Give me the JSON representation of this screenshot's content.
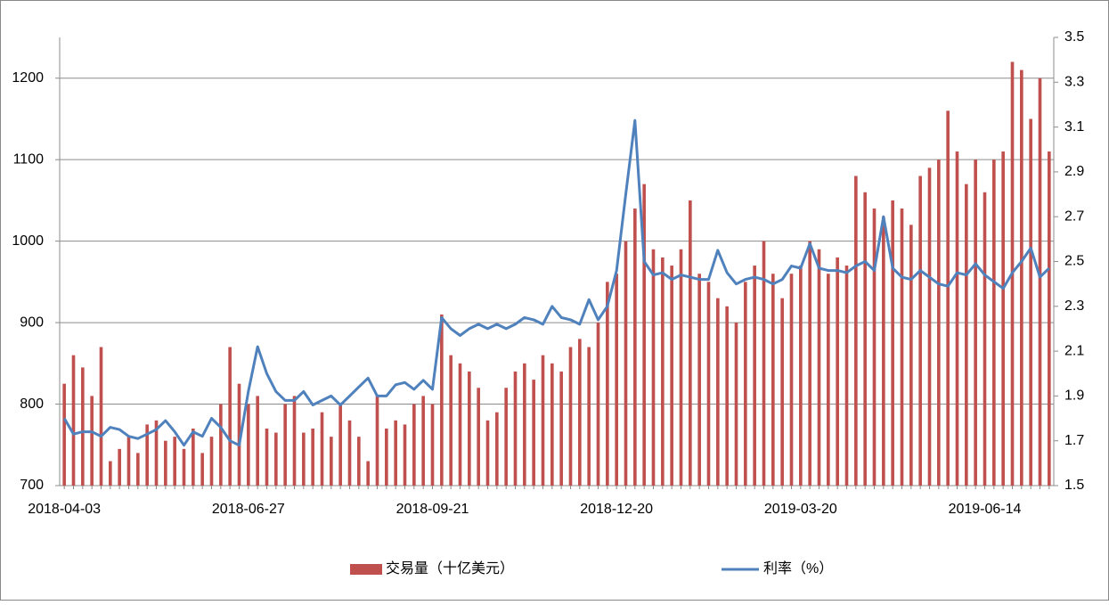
{
  "chart_data": {
    "type": "combo",
    "categories": [
      "2018-04-03",
      null,
      null,
      null,
      null,
      null,
      null,
      null,
      null,
      null,
      null,
      null,
      null,
      null,
      null,
      null,
      null,
      null,
      null,
      null,
      "2018-06-27",
      null,
      null,
      null,
      null,
      null,
      null,
      null,
      null,
      null,
      null,
      null,
      null,
      null,
      null,
      null,
      null,
      null,
      null,
      null,
      "2018-09-21",
      null,
      null,
      null,
      null,
      null,
      null,
      null,
      null,
      null,
      null,
      null,
      null,
      null,
      null,
      null,
      null,
      null,
      null,
      null,
      "2018-12-20",
      null,
      null,
      null,
      null,
      null,
      null,
      null,
      null,
      null,
      null,
      null,
      null,
      null,
      null,
      null,
      null,
      null,
      null,
      null,
      "2019-03-20",
      null,
      null,
      null,
      null,
      null,
      null,
      null,
      null,
      null,
      null,
      null,
      null,
      null,
      null,
      null,
      null,
      null,
      null,
      null,
      "2019-06-14",
      null,
      null,
      null,
      null,
      null,
      null,
      null
    ],
    "series": [
      {
        "name": "交易量（十亿美元）",
        "type": "bar",
        "color": "#c0504d",
        "values": [
          825,
          860,
          845,
          810,
          870,
          730,
          745,
          760,
          740,
          775,
          780,
          755,
          760,
          745,
          770,
          740,
          760,
          800,
          870,
          825,
          800,
          810,
          770,
          765,
          800,
          810,
          765,
          770,
          790,
          760,
          800,
          780,
          760,
          730,
          810,
          770,
          780,
          775,
          800,
          810,
          800,
          910,
          860,
          850,
          840,
          820,
          780,
          790,
          820,
          840,
          850,
          830,
          860,
          850,
          840,
          870,
          880,
          870,
          900,
          950,
          960,
          1000,
          1040,
          1070,
          990,
          980,
          970,
          990,
          1050,
          960,
          950,
          930,
          920,
          900,
          950,
          970,
          1000,
          960,
          930,
          960,
          970,
          1000,
          990,
          960,
          980,
          970,
          1080,
          1060,
          1040,
          1030,
          1050,
          1040,
          1020,
          1080,
          1090,
          1100,
          1160,
          1110,
          1070,
          1100,
          1060,
          1100,
          1110,
          1220,
          1210,
          1150,
          1200,
          1110
        ]
      },
      {
        "name": "利率（%）",
        "type": "line",
        "axis": "y2",
        "color": "#4f81bd",
        "values": [
          1.8,
          1.73,
          1.74,
          1.74,
          1.72,
          1.76,
          1.75,
          1.72,
          1.71,
          1.73,
          1.75,
          1.79,
          1.74,
          1.68,
          1.74,
          1.72,
          1.8,
          1.76,
          1.7,
          1.68,
          1.92,
          2.12,
          2.0,
          1.92,
          1.88,
          1.88,
          1.92,
          1.86,
          1.88,
          1.9,
          1.86,
          1.9,
          1.94,
          1.98,
          1.9,
          1.9,
          1.95,
          1.96,
          1.93,
          1.97,
          1.93,
          2.25,
          2.2,
          2.17,
          2.2,
          2.22,
          2.2,
          2.22,
          2.2,
          2.22,
          2.25,
          2.24,
          2.22,
          2.3,
          2.25,
          2.24,
          2.22,
          2.33,
          2.24,
          2.3,
          2.46,
          2.8,
          3.13,
          2.5,
          2.44,
          2.45,
          2.42,
          2.44,
          2.43,
          2.42,
          2.42,
          2.55,
          2.45,
          2.4,
          2.42,
          2.43,
          2.42,
          2.4,
          2.42,
          2.48,
          2.47,
          2.58,
          2.47,
          2.46,
          2.46,
          2.45,
          2.48,
          2.5,
          2.46,
          2.7,
          2.47,
          2.43,
          2.42,
          2.46,
          2.43,
          2.4,
          2.39,
          2.45,
          2.44,
          2.49,
          2.44,
          2.41,
          2.38,
          2.45,
          2.5,
          2.56,
          2.43,
          2.47
        ]
      }
    ],
    "ylim": [
      700,
      1250
    ],
    "yticks": [
      700,
      800,
      900,
      1000,
      1100,
      1200
    ],
    "y2lim": [
      1.5,
      3.5
    ],
    "y2ticks": [
      1.5,
      1.7,
      1.9,
      2.1,
      2.3,
      2.5,
      2.7,
      2.9,
      3.1,
      3.3,
      3.5
    ],
    "grid": true,
    "legend": "bottom"
  }
}
